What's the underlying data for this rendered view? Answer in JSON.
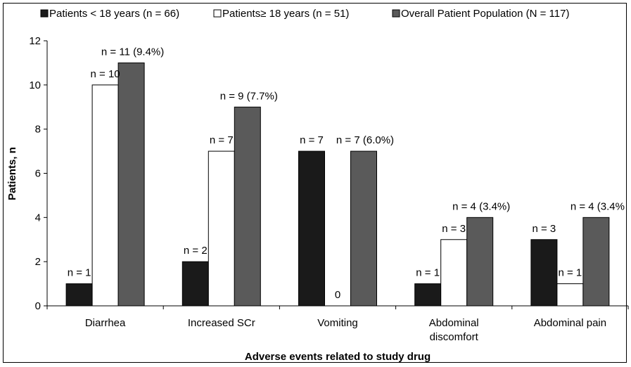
{
  "chart_data": {
    "type": "bar",
    "title": "",
    "xlabel": "Adverse events related to study drug",
    "ylabel": "Patients, n",
    "ylim": [
      0,
      12
    ],
    "yticks": [
      "0",
      "2",
      "4",
      "6",
      "8",
      "10",
      "12"
    ],
    "grid": false,
    "legend_position": "top",
    "categories": [
      [
        "Diarrhea"
      ],
      [
        "Increased SCr"
      ],
      [
        "Vomiting"
      ],
      [
        "Abdominal",
        "discomfort"
      ],
      [
        "Abdominal pain"
      ]
    ],
    "series": [
      {
        "name": "Patients < 18 years (n = 66)",
        "color": "#1a1a1a",
        "values": [
          1,
          2,
          7,
          1,
          3
        ],
        "labels": [
          "n = 1",
          "n = 2",
          "n = 7",
          "n = 1",
          "n = 3"
        ]
      },
      {
        "name": "Patients≥ 18 years (n = 51)",
        "color": "#ffffff",
        "values": [
          10,
          7,
          0,
          3,
          1
        ],
        "labels": [
          "n = 10",
          "n = 7",
          "0",
          "n = 3",
          "n = 1"
        ]
      },
      {
        "name": "Overall Patient Population (N = 117)",
        "color": "#5a5a5a",
        "values": [
          11,
          9,
          7,
          4,
          4
        ],
        "labels": [
          "n = 11 (9.4%)",
          "n = 9 (7.7%)",
          "n = 7 (6.0%)",
          "n = 4 (3.4%)",
          "n = 4 (3.4%"
        ]
      }
    ]
  }
}
